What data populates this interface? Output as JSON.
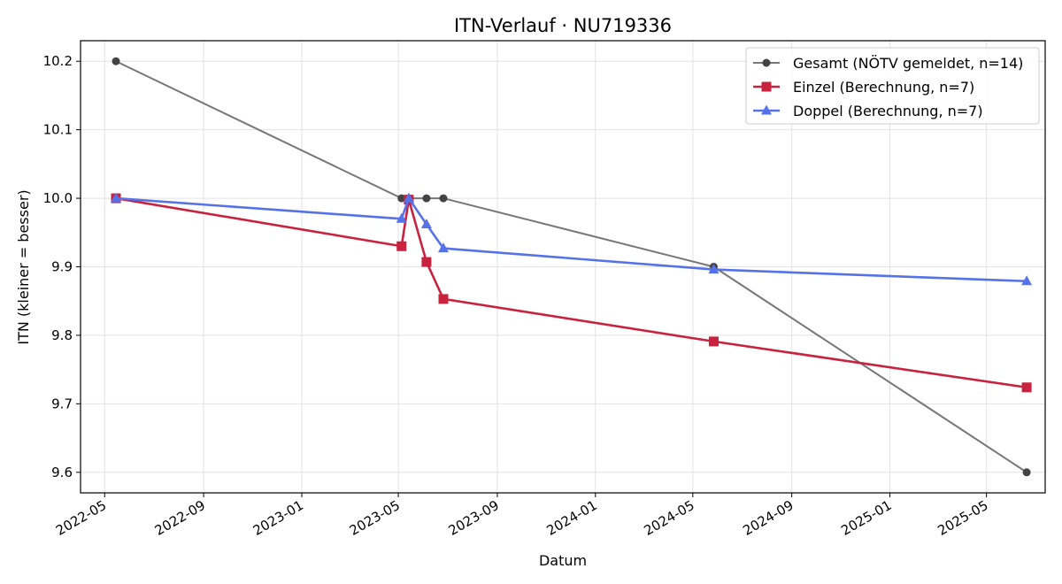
{
  "chart_data": {
    "type": "line",
    "title": "ITN-Verlauf · NU719336",
    "xlabel": "Datum",
    "ylabel": "ITN  (kleiner = besser)",
    "xlim": [
      "2022-04-01",
      "2025-07-13"
    ],
    "ylim": [
      9.57,
      10.23
    ],
    "x_ticks": [
      "2022-05",
      "2022-09",
      "2023-01",
      "2023-05",
      "2023-09",
      "2024-01",
      "2024-05",
      "2024-09",
      "2025-01",
      "2025-05"
    ],
    "y_ticks": [
      "9.6",
      "9.7",
      "9.8",
      "9.9",
      "10.0",
      "10.1",
      "10.2"
    ],
    "grid": true,
    "legend_position": "top-right",
    "series": [
      {
        "name": "Gesamt (NÖTV gemeldet, n=14)",
        "color": "#777777",
        "marker_color": "#444444",
        "marker": "circle",
        "points": [
          {
            "x": "2022-05-15",
            "y": 10.2
          },
          {
            "x": "2023-05-05",
            "y": 10.0
          },
          {
            "x": "2023-05-14",
            "y": 10.0
          },
          {
            "x": "2023-06-05",
            "y": 10.0
          },
          {
            "x": "2023-06-26",
            "y": 10.0
          },
          {
            "x": "2024-05-27",
            "y": 9.9
          },
          {
            "x": "2025-06-20",
            "y": 9.6
          }
        ]
      },
      {
        "name": "Einzel (Berechnung, n=7)",
        "color": "#c8223f",
        "marker": "square",
        "points": [
          {
            "x": "2022-05-15",
            "y": 10.0
          },
          {
            "x": "2023-05-05",
            "y": 9.93
          },
          {
            "x": "2023-05-14",
            "y": 9.998
          },
          {
            "x": "2023-06-05",
            "y": 9.907
          },
          {
            "x": "2023-06-26",
            "y": 9.853
          },
          {
            "x": "2024-05-27",
            "y": 9.791
          },
          {
            "x": "2025-06-20",
            "y": 9.724
          }
        ]
      },
      {
        "name": "Doppel (Berechnung, n=7)",
        "color": "#5572e8",
        "marker": "triangle",
        "points": [
          {
            "x": "2022-05-15",
            "y": 10.0
          },
          {
            "x": "2023-05-05",
            "y": 9.97
          },
          {
            "x": "2023-05-14",
            "y": 10.0
          },
          {
            "x": "2023-06-05",
            "y": 9.962
          },
          {
            "x": "2023-06-26",
            "y": 9.927
          },
          {
            "x": "2024-05-27",
            "y": 9.896
          },
          {
            "x": "2025-06-20",
            "y": 9.879
          }
        ]
      }
    ]
  }
}
